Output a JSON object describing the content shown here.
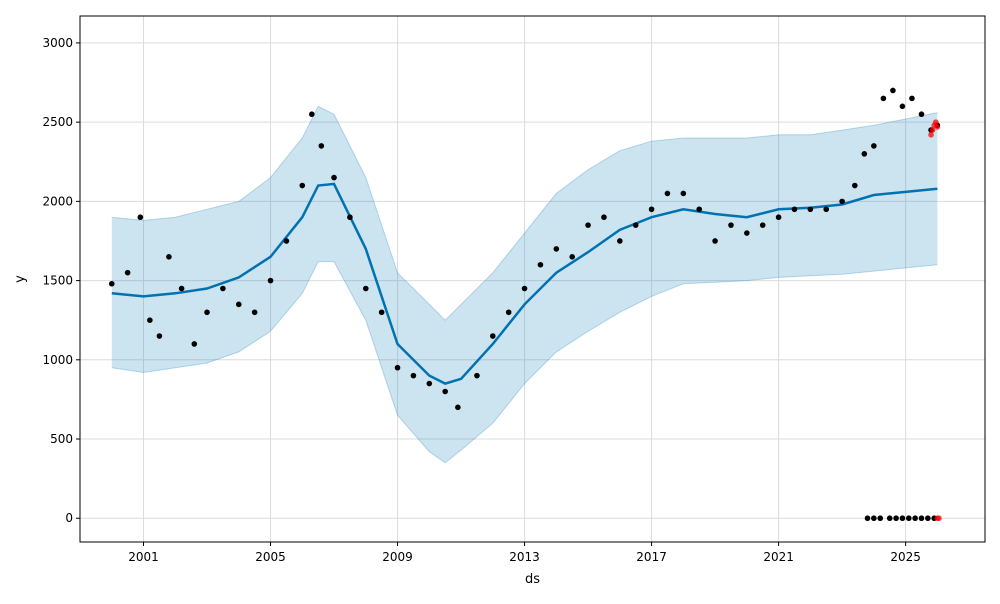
{
  "chart_data": {
    "type": "line",
    "title": "",
    "xlabel": "ds",
    "ylabel": "y",
    "x_ticks": [
      "2001",
      "2005",
      "2009",
      "2013",
      "2017",
      "2021",
      "2025"
    ],
    "y_ticks": [
      0,
      500,
      1000,
      1500,
      2000,
      2500,
      3000
    ],
    "xlim": [
      1999.0,
      2027.5
    ],
    "ylim": [
      -150,
      3170
    ],
    "grid": true,
    "colors": {
      "forecast": "#0072B2",
      "interval": "#0072B2",
      "observed": "#000000",
      "recent": "#ff0000"
    },
    "series": [
      {
        "role": "forecast",
        "x": [
          2000.0,
          2001.0,
          2002.0,
          2003.0,
          2004.0,
          2005.0,
          2006.0,
          2006.5,
          2007.0,
          2008.0,
          2009.0,
          2010.0,
          2010.5,
          2011.0,
          2012.0,
          2013.0,
          2014.0,
          2015.0,
          2016.0,
          2017.0,
          2018.0,
          2019.0,
          2020.0,
          2021.0,
          2022.0,
          2023.0,
          2024.0,
          2025.0,
          2026.0
        ],
        "y": [
          1420,
          1400,
          1420,
          1450,
          1520,
          1650,
          1900,
          2100,
          2110,
          1700,
          1100,
          900,
          850,
          880,
          1100,
          1350,
          1550,
          1680,
          1820,
          1900,
          1950,
          1920,
          1900,
          1950,
          1960,
          1980,
          2040,
          2060,
          2080
        ]
      },
      {
        "role": "interval_upper",
        "x": [
          2000.0,
          2001.0,
          2002.0,
          2003.0,
          2004.0,
          2005.0,
          2006.0,
          2006.5,
          2007.0,
          2008.0,
          2009.0,
          2010.0,
          2010.5,
          2011.0,
          2012.0,
          2013.0,
          2014.0,
          2015.0,
          2016.0,
          2017.0,
          2018.0,
          2019.0,
          2020.0,
          2021.0,
          2022.0,
          2023.0,
          2024.0,
          2025.0,
          2026.0
        ],
        "y": [
          1900,
          1880,
          1900,
          1950,
          2000,
          2150,
          2400,
          2600,
          2550,
          2150,
          1550,
          1350,
          1250,
          1350,
          1550,
          1800,
          2050,
          2200,
          2320,
          2380,
          2400,
          2400,
          2400,
          2420,
          2420,
          2450,
          2480,
          2520,
          2560
        ]
      },
      {
        "role": "interval_lower",
        "x": [
          2000.0,
          2001.0,
          2002.0,
          2003.0,
          2004.0,
          2005.0,
          2006.0,
          2006.5,
          2007.0,
          2008.0,
          2009.0,
          2010.0,
          2010.5,
          2011.0,
          2012.0,
          2013.0,
          2014.0,
          2015.0,
          2016.0,
          2017.0,
          2018.0,
          2019.0,
          2020.0,
          2021.0,
          2022.0,
          2023.0,
          2024.0,
          2025.0,
          2026.0
        ],
        "y": [
          950,
          920,
          950,
          980,
          1050,
          1180,
          1420,
          1620,
          1620,
          1250,
          650,
          420,
          350,
          430,
          600,
          850,
          1050,
          1180,
          1300,
          1400,
          1480,
          1490,
          1500,
          1520,
          1530,
          1540,
          1560,
          1580,
          1600
        ]
      },
      {
        "role": "observed",
        "x": [
          2000.0,
          2000.5,
          2000.9,
          2001.2,
          2001.5,
          2001.8,
          2002.2,
          2002.6,
          2003.0,
          2003.5,
          2004.0,
          2004.5,
          2005.0,
          2005.5,
          2006.0,
          2006.3,
          2006.6,
          2007.0,
          2007.5,
          2008.0,
          2008.5,
          2009.0,
          2009.5,
          2010.0,
          2010.5,
          2010.9,
          2011.5,
          2012.0,
          2012.5,
          2013.0,
          2013.5,
          2014.0,
          2014.5,
          2015.0,
          2015.5,
          2016.0,
          2016.5,
          2017.0,
          2017.5,
          2018.0,
          2018.5,
          2019.0,
          2019.5,
          2020.0,
          2020.5,
          2021.0,
          2021.5,
          2022.0,
          2022.5,
          2023.0,
          2023.4,
          2023.7,
          2024.0,
          2024.3,
          2024.6,
          2024.9,
          2025.2,
          2025.5,
          2025.8,
          2026.0
        ],
        "y": [
          1480,
          1550,
          1900,
          1250,
          1150,
          1650,
          1450,
          1100,
          1300,
          1450,
          1350,
          1300,
          1500,
          1750,
          2100,
          2550,
          2350,
          2150,
          1900,
          1450,
          1300,
          950,
          900,
          850,
          800,
          700,
          900,
          1150,
          1300,
          1450,
          1600,
          1700,
          1650,
          1850,
          1900,
          1750,
          1850,
          1950,
          2050,
          2050,
          1950,
          1750,
          1850,
          1800,
          1850,
          1900,
          1950,
          1950,
          1950,
          2000,
          2100,
          2300,
          2350,
          2650,
          2700,
          2600,
          2650,
          2550,
          2450,
          2480
        ]
      },
      {
        "role": "observed_zero",
        "x": [
          2023.8,
          2024.0,
          2024.2,
          2024.5,
          2024.7,
          2024.9,
          2025.1,
          2025.3,
          2025.5,
          2025.7,
          2025.9
        ],
        "y": [
          0,
          0,
          0,
          0,
          0,
          0,
          0,
          0,
          0,
          0,
          0
        ]
      },
      {
        "role": "recent",
        "x": [
          2025.8,
          2025.85,
          2025.9,
          2025.95,
          2026.0,
          2026.0,
          2026.05
        ],
        "y": [
          2420,
          2450,
          2480,
          2500,
          2470,
          0,
          0
        ]
      }
    ]
  }
}
